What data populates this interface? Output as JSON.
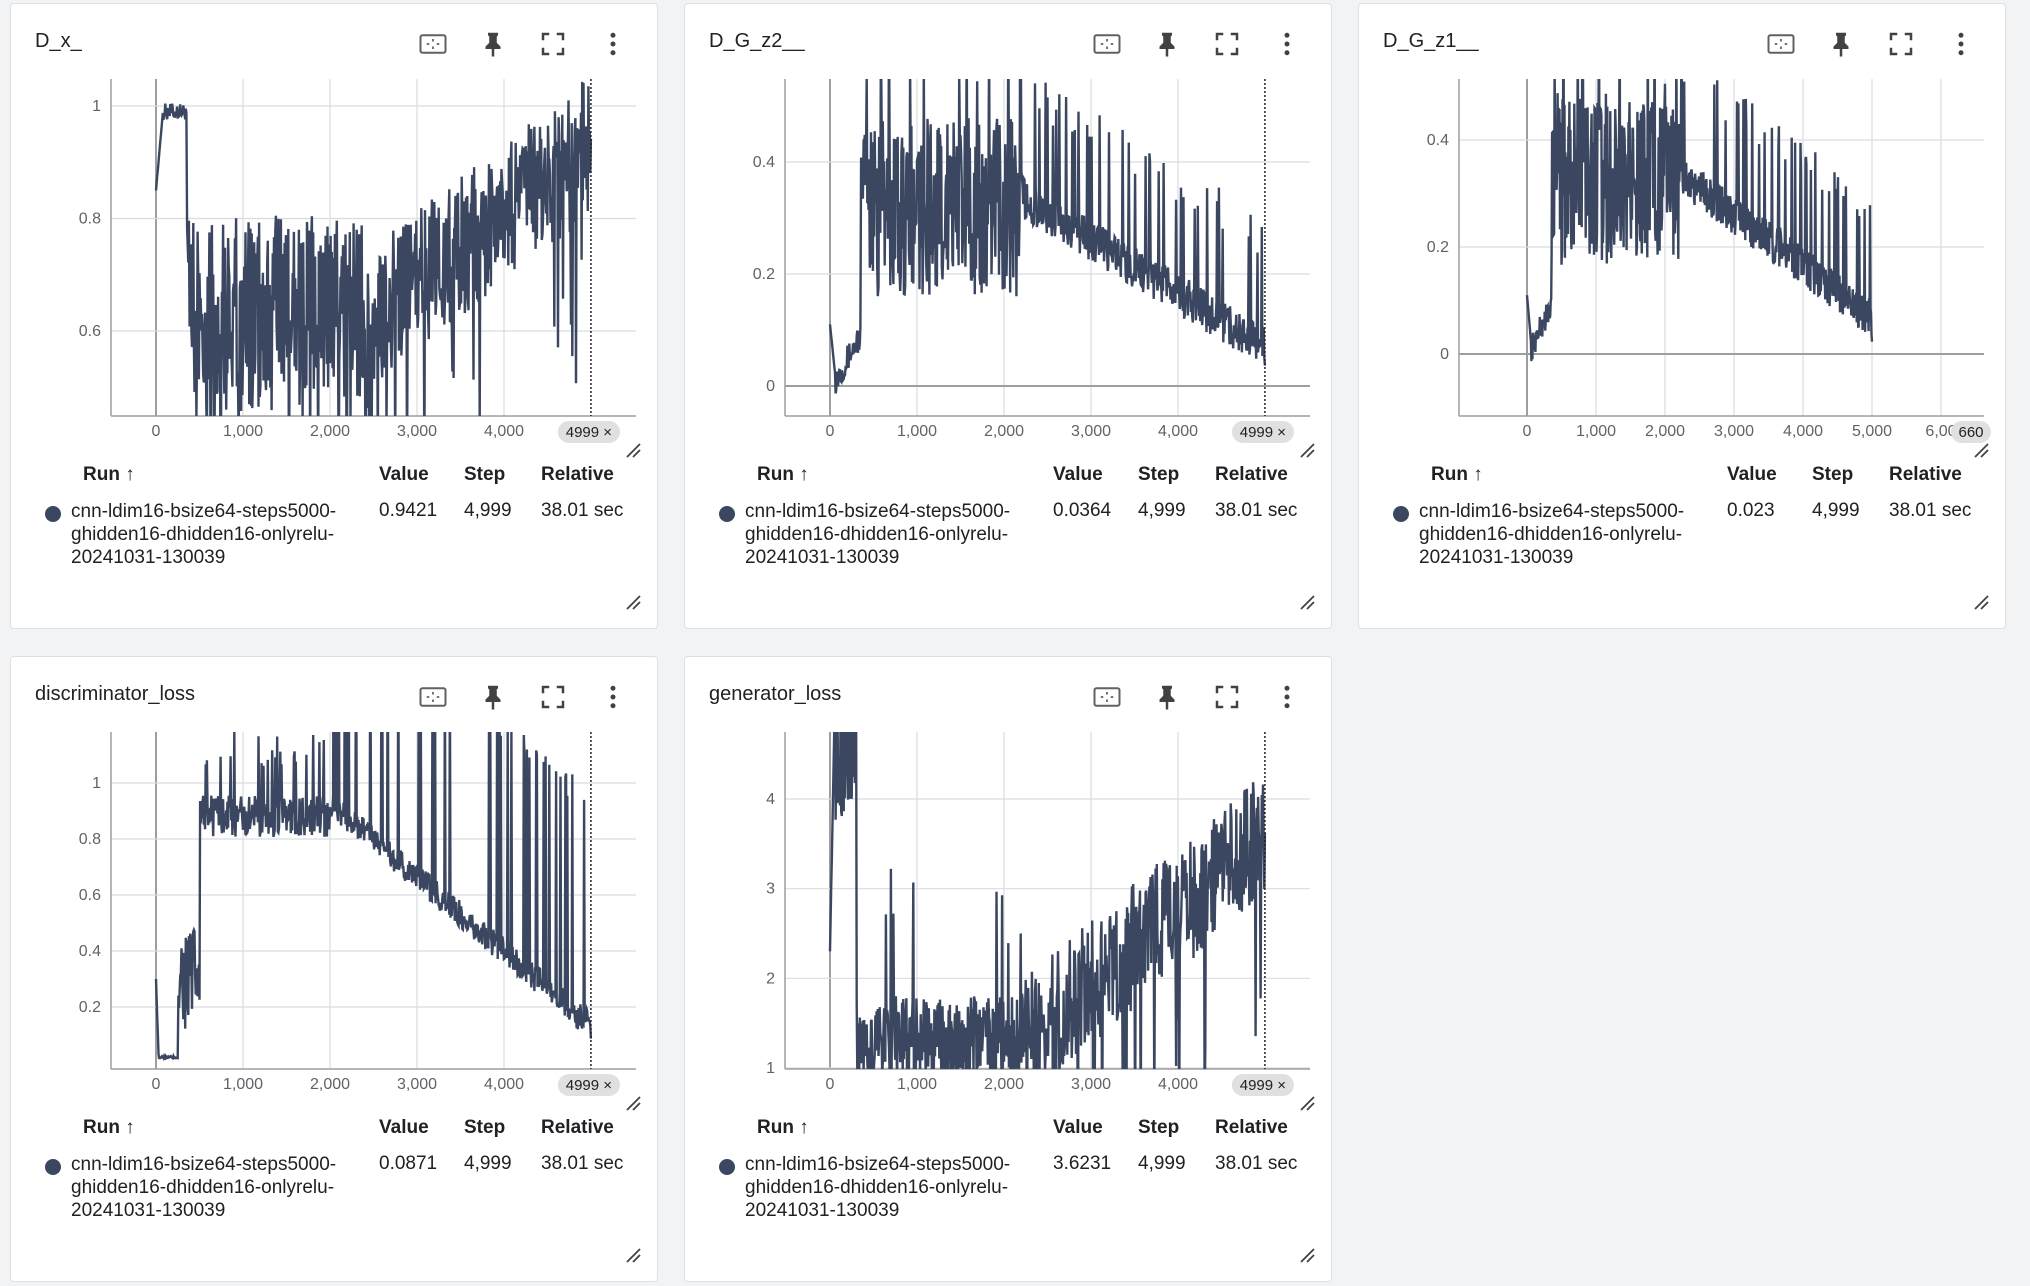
{
  "colors": {
    "series": "#3b4760",
    "grid": "#dadce0",
    "axis": "#9e9e9e",
    "card": "#ffffff",
    "background": "#f1f3f4"
  },
  "icons": {
    "fit": "fit-domain-icon",
    "pin": "pin-icon",
    "fullscreen": "fullscreen-icon",
    "more": "more-vert-icon",
    "resize": "resize-icon"
  },
  "table_headers": {
    "run": "Run ↑",
    "value": "Value",
    "step": "Step",
    "relative": "Relative"
  },
  "run_name_lines": [
    "cnn-ldim16-bsize64-steps5000-",
    "ghidden16-dhidden16-onlyrelu-",
    "20241031-130039"
  ],
  "cards": [
    {
      "title": "D_x_",
      "row": {
        "value": "0.9421",
        "step": "4,999",
        "relative": "38.01 sec"
      },
      "step_chip": "4999 ×",
      "chart_data": {
        "type": "line",
        "series": [
          {
            "values_summary": "starts near 0.85, rises to ~1 by step 100, falls to 0.45-0.8 range around 500-2500, climbs back toward 0.95 by 4999"
          }
        ],
        "final": 0.9421,
        "xlim": [
          -500,
          5500
        ],
        "ylim": [
          0.45,
          1.07
        ],
        "xticks": [
          "0",
          "1,000",
          "2,000",
          "3,000",
          "4,000"
        ],
        "yticks": [
          "0.6",
          "0.8",
          "1"
        ]
      }
    },
    {
      "title": "D_G_z2__",
      "row": {
        "value": "0.0364",
        "step": "4,999",
        "relative": "38.01 sec"
      },
      "step_chip": "4999 ×",
      "chart_data": {
        "type": "line",
        "series": [
          {
            "values_summary": "starts at 0.1, drops near 0, rises to 0.2-0.5 range by step 600, slowly decays to ~0.04 by 4999"
          }
        ],
        "final": 0.0364,
        "xlim": [
          -500,
          5500
        ],
        "ylim": [
          -0.05,
          0.55
        ],
        "xticks": [
          "0",
          "1,000",
          "2,000",
          "3,000",
          "4,000"
        ],
        "yticks": [
          "0",
          "0.2",
          "0.4"
        ]
      }
    },
    {
      "title": "D_G_z1__",
      "row": {
        "value": "0.023",
        "step": "4,999",
        "relative": "38.01 sec"
      },
      "step_chip": "660",
      "chart_data": {
        "type": "line",
        "series": [
          {
            "values_summary": "starts at 0.12, drops near 0, rises to 0.2-0.5 range by step 500, decays to ~0.03 by 5000"
          }
        ],
        "final": 0.023,
        "xlim": [
          -1000,
          6600
        ],
        "ylim": [
          -0.11,
          0.52
        ],
        "xticks": [
          "0",
          "1,000",
          "2,000",
          "3,000",
          "4,000",
          "5,000",
          "6,00"
        ],
        "yticks": [
          "0",
          "0.2",
          "0.4"
        ]
      }
    },
    {
      "title": "discriminator_loss",
      "row": {
        "value": "0.0871",
        "step": "4,999",
        "relative": "38.01 sec"
      },
      "step_chip": "4999 ×",
      "chart_data": {
        "type": "line",
        "series": [
          {
            "values_summary": "starts at 0.3, drops to ~0.02, jumps to ~0.9-1.0 by step 600, then decreases to ~0.1 by 4999 with large spikes"
          }
        ],
        "final": 0.0871,
        "xlim": [
          -500,
          5500
        ],
        "ylim": [
          0,
          1.2
        ],
        "xticks": [
          "0",
          "1,000",
          "2,000",
          "3,000",
          "4,000"
        ],
        "yticks": [
          "0.2",
          "0.4",
          "0.6",
          "0.8",
          "1"
        ]
      }
    },
    {
      "title": "generator_loss",
      "row": {
        "value": "3.6231",
        "step": "4,999",
        "relative": "38.01 sec"
      },
      "step_chip": "4999 ×",
      "chart_data": {
        "type": "line",
        "series": [
          {
            "values_summary": "starts at 2.3, spikes above 5, falls to ~1-1.5 around steps 500-2000, rises to ~3.6 by 4999"
          }
        ],
        "final": 3.6231,
        "xlim": [
          -500,
          5500
        ],
        "ylim": [
          0,
          5
        ],
        "xticks": [
          "0",
          "1,000",
          "2,000",
          "3,000",
          "4,000"
        ],
        "yticks": [
          "1",
          "2",
          "3",
          "4"
        ]
      }
    }
  ]
}
